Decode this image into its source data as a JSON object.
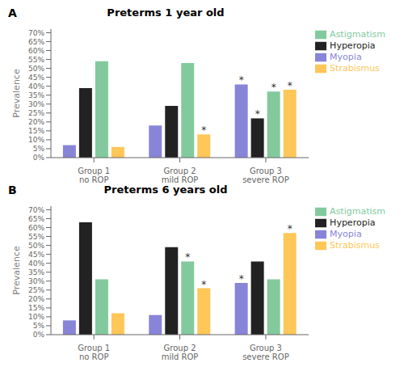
{
  "chart_data": [
    {
      "type": "bar",
      "panel_label": "A",
      "title": "Preterms 1 year old",
      "y_label": "Prevalence",
      "categories": [
        "Group 1\nno ROP",
        "Group 2\nmild ROP",
        "Group 3\nsevere ROP"
      ],
      "series": [
        {
          "name": "Myopia",
          "color": "#8884d8",
          "values": [
            0.07,
            0.18,
            0.41
          ],
          "annotations": [
            null,
            null,
            "*"
          ]
        },
        {
          "name": "Hyperopia",
          "color": "#222222",
          "values": [
            0.39,
            0.29,
            0.22
          ],
          "annotations": [
            null,
            null,
            "*"
          ]
        },
        {
          "name": "Astigmatism",
          "color": "#82ca9d",
          "values": [
            0.54,
            0.53,
            0.37
          ],
          "annotations": [
            null,
            null,
            "*"
          ]
        },
        {
          "name": "Strabismus",
          "color": "#ffc658",
          "values": [
            0.06,
            0.13,
            0.38
          ],
          "annotations": [
            null,
            "*",
            "*"
          ]
        }
      ],
      "ylim": [
        0,
        0.72
      ],
      "yticks": [
        {
          "value": 0.0,
          "label": "0%"
        },
        {
          "value": 0.05,
          "label": "5%"
        },
        {
          "value": 0.1,
          "label": "10%"
        },
        {
          "value": 0.15,
          "label": "15%"
        },
        {
          "value": 0.2,
          "label": "20%"
        },
        {
          "value": 0.25,
          "label": "25%"
        },
        {
          "value": 0.3,
          "label": "30%"
        },
        {
          "value": 0.35,
          "label": "35%"
        },
        {
          "value": 0.4,
          "label": "40%"
        },
        {
          "value": 0.45,
          "label": "45%"
        },
        {
          "value": 0.5,
          "label": "50%"
        },
        {
          "value": 0.55,
          "label": "55%"
        },
        {
          "value": 0.6,
          "label": "60%"
        },
        {
          "value": 0.65,
          "label": "65%"
        },
        {
          "value": 0.7,
          "label": "70%"
        }
      ],
      "grid": false,
      "legend": "right"
    },
    {
      "type": "bar",
      "panel_label": "B",
      "title": "Preterms 6 years old",
      "y_label": "Prevalence",
      "categories": [
        "Group 1\nno ROP",
        "Group 2\nmild ROP",
        "Group 3\nsevere ROP"
      ],
      "series": [
        {
          "name": "Myopia",
          "color": "#8884d8",
          "values": [
            0.08,
            0.11,
            0.29
          ],
          "annotations": [
            null,
            null,
            "*"
          ]
        },
        {
          "name": "Hyperopia",
          "color": "#222222",
          "values": [
            0.63,
            0.49,
            0.41
          ],
          "annotations": [
            null,
            null,
            null
          ]
        },
        {
          "name": "Astigmatism",
          "color": "#82ca9d",
          "values": [
            0.31,
            0.41,
            0.31
          ],
          "annotations": [
            null,
            "*",
            null
          ]
        },
        {
          "name": "Strabismus",
          "color": "#ffc658",
          "values": [
            0.12,
            0.26,
            0.57
          ],
          "annotations": [
            null,
            "*",
            "*"
          ]
        }
      ],
      "ylim": [
        0,
        0.72
      ],
      "yticks": [
        {
          "value": 0.0,
          "label": "0%"
        },
        {
          "value": 0.05,
          "label": "5%"
        },
        {
          "value": 0.1,
          "label": "10%"
        },
        {
          "value": 0.15,
          "label": "15%"
        },
        {
          "value": 0.2,
          "label": "20%"
        },
        {
          "value": 0.25,
          "label": "25%"
        },
        {
          "value": 0.3,
          "label": "30%"
        },
        {
          "value": 0.35,
          "label": "35%"
        },
        {
          "value": 0.4,
          "label": "40%"
        },
        {
          "value": 0.45,
          "label": "45%"
        },
        {
          "value": 0.5,
          "label": "50%"
        },
        {
          "value": 0.55,
          "label": "55%"
        },
        {
          "value": 0.6,
          "label": "60%"
        },
        {
          "value": 0.65,
          "label": "65%"
        },
        {
          "value": 0.7,
          "label": "70%"
        }
      ],
      "grid": false,
      "legend": "right"
    }
  ]
}
